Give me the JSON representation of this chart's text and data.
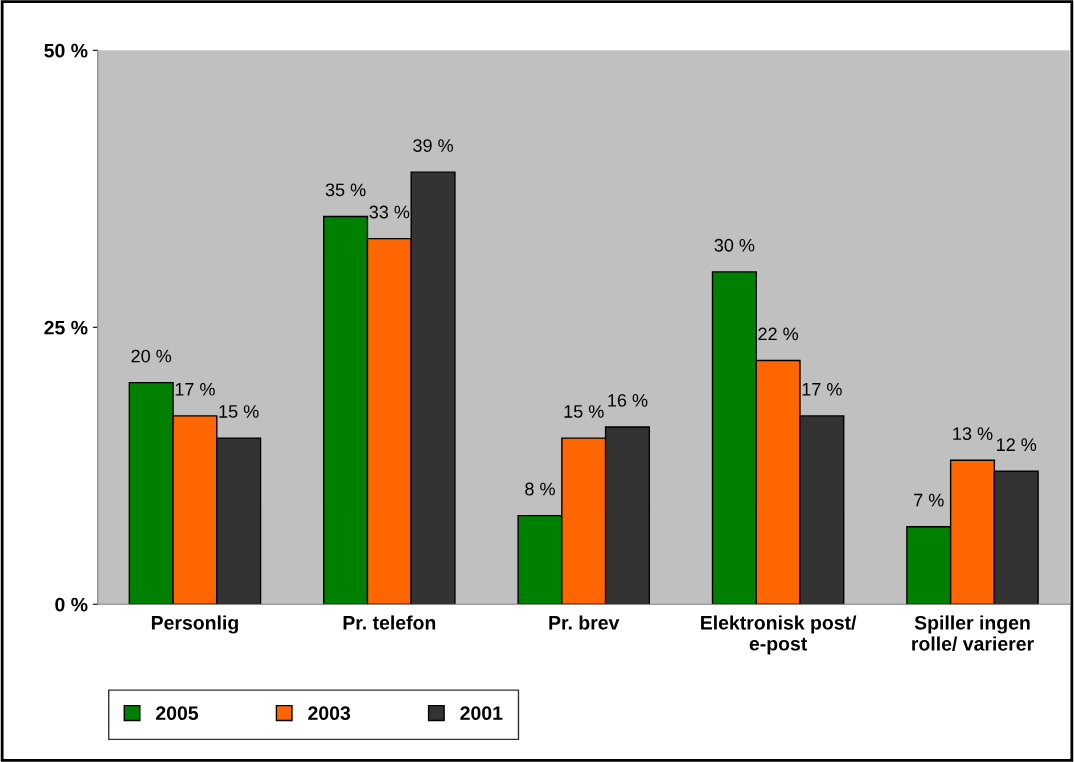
{
  "chart_data": {
    "type": "bar",
    "categories": [
      "Personlig",
      "Pr. telefon",
      "Pr. brev",
      "Elektronisk post/\ne-post",
      "Spiller ingen\nrolle/ varierer"
    ],
    "series": [
      {
        "name": "2005",
        "color": "#008000",
        "values": [
          20,
          35,
          8,
          30,
          7
        ],
        "value_labels": [
          "20 %",
          "35 %",
          "8 %",
          "30 %",
          "7 %"
        ]
      },
      {
        "name": "2003",
        "color": "#ff6600",
        "values": [
          17,
          33,
          15,
          22,
          13
        ],
        "value_labels": [
          "17 %",
          "33 %",
          "15 %",
          "22 %",
          "13 %"
        ]
      },
      {
        "name": "2001",
        "color": "#333333",
        "values": [
          15,
          39,
          16,
          17,
          12
        ],
        "value_labels": [
          "15 %",
          "39 %",
          "16 %",
          "17 %",
          "12 %"
        ]
      }
    ],
    "ylim": [
      0,
      50
    ],
    "yticks": [
      {
        "value": 0,
        "label": "0 %"
      },
      {
        "value": 25,
        "label": "25 %"
      },
      {
        "value": 50,
        "label": "50 %"
      }
    ],
    "grid": false,
    "legend": "bottom left"
  }
}
